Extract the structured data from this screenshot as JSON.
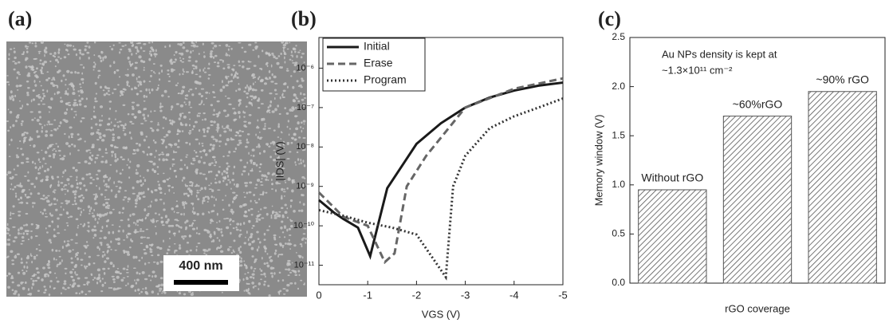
{
  "panel_labels": [
    "(a)",
    "(b)",
    "(c)"
  ],
  "image": {
    "scale_bar": "400 nm"
  },
  "chart_data": [
    {
      "type": "line",
      "xlabel": "VGS (V)",
      "ylabel": "|IDS| (V)",
      "xlim": [
        0,
        -5
      ],
      "xticks": [
        0,
        -1,
        -2,
        -3,
        -4,
        -5
      ],
      "ylog": true,
      "ylim": [
        3.2e-12,
        6e-06
      ],
      "yticks": [
        {
          "value": 1e-11,
          "label": "10⁻¹¹"
        },
        {
          "value": 1e-10,
          "label": "10⁻¹⁰"
        },
        {
          "value": 1e-09,
          "label": "10⁻⁹"
        },
        {
          "value": 1e-08,
          "label": "10⁻⁸"
        },
        {
          "value": 1e-07,
          "label": "10⁻⁷"
        },
        {
          "value": 1e-06,
          "label": "10⁻⁶"
        }
      ],
      "legend": "upper left",
      "series": [
        {
          "name": "Initial",
          "color": "#1a1a1a",
          "dash": "solid",
          "x": [
            0,
            -0.3,
            -0.5,
            -0.8,
            -1.05,
            -1.4,
            -2,
            -2.5,
            -3,
            -3.5,
            -4,
            -4.5,
            -5
          ],
          "values": [
            4.5e-10,
            2.2e-10,
            1.5e-10,
            9e-11,
            1.7e-11,
            9e-10,
            1.2e-08,
            4e-08,
            1e-07,
            1.8e-07,
            2.7e-07,
            3.6e-07,
            4.3e-07
          ]
        },
        {
          "name": "Erase",
          "color": "#666666",
          "dash": "dashed",
          "x": [
            0,
            -0.5,
            -1,
            -1.35,
            -1.55,
            -1.8,
            -2.2,
            -3,
            -4,
            -5
          ],
          "values": [
            7e-10,
            1.7e-10,
            1e-10,
            1.2e-11,
            2e-11,
            1e-09,
            6e-09,
            1e-07,
            3e-07,
            5.5e-07
          ]
        },
        {
          "name": "Program",
          "color": "#333333",
          "dash": "dotted",
          "x": [
            0,
            -0.5,
            -1,
            -1.5,
            -2,
            -2.6,
            -2.75,
            -3,
            -3.5,
            -4,
            -4.5,
            -5
          ],
          "values": [
            2.5e-10,
            1.8e-10,
            1.2e-10,
            9e-11,
            6e-11,
            5e-12,
            1e-09,
            6e-09,
            3e-08,
            6e-08,
            1e-07,
            1.7e-07
          ]
        }
      ]
    },
    {
      "type": "bar",
      "xlabel": "rGO coverage",
      "ylabel": "Memory window (V)",
      "annotation": [
        "Au NPs density is kept at",
        "~1.3×10¹¹ cm⁻²"
      ],
      "categories": [
        "Without rGO",
        "~60%rGO",
        "~90% rGO"
      ],
      "values": [
        0.95,
        1.7,
        1.95
      ],
      "color": "#555555",
      "hatch": true,
      "ylim": [
        0,
        2.5
      ],
      "yticks": [
        {
          "value": 0,
          "label": "0.0"
        },
        {
          "value": 0.5,
          "label": "0.5"
        },
        {
          "value": 1,
          "label": "1.0"
        },
        {
          "value": 1.5,
          "label": "1.5"
        },
        {
          "value": 2,
          "label": "2.0"
        },
        {
          "value": 2.5,
          "label": "2.5"
        }
      ]
    }
  ]
}
